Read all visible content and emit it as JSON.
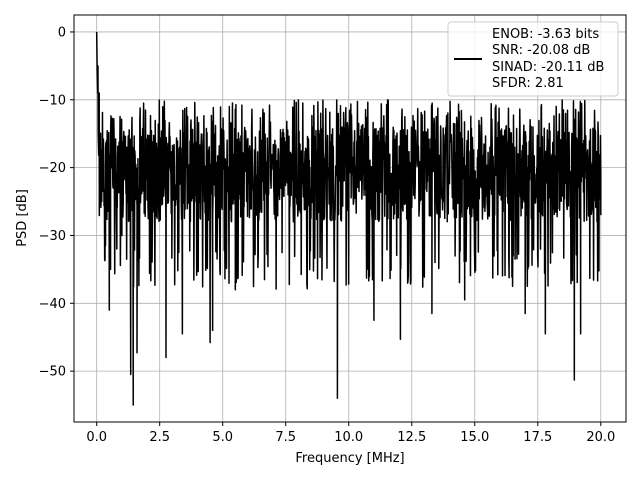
{
  "chart_data": {
    "type": "line",
    "title": "",
    "xlabel": "Frequency [MHz]",
    "ylabel": "PSD [dB]",
    "xlim": [
      -0.9,
      21.0
    ],
    "ylim": [
      -57.5,
      2.5
    ],
    "xticks": [
      0.0,
      2.5,
      5.0,
      7.5,
      10.0,
      12.5,
      15.0,
      17.5,
      20.0
    ],
    "xtick_labels": [
      "0.0",
      "2.5",
      "5.0",
      "7.5",
      "10.0",
      "12.5",
      "15.0",
      "17.5",
      "20.0"
    ],
    "yticks": [
      0,
      -10,
      -20,
      -30,
      -40,
      -50
    ],
    "ytick_labels": [
      "0",
      "−10",
      "−20",
      "−30",
      "−40",
      "−50"
    ],
    "grid": true,
    "legend_position": "top-right",
    "series": [
      {
        "name": "",
        "color": "#000000",
        "description_points": {
          "x": [
            0.0,
            0.05,
            0.1,
            0.2,
            0.35,
            0.5,
            0.55,
            0.8,
            1.0,
            1.35,
            1.45,
            1.6,
            2.75,
            3.4,
            4.5,
            4.6,
            5.5,
            9.55,
            11.0,
            12.05,
            13.3,
            14.6,
            16.5,
            17.0,
            17.8,
            18.95,
            19.2,
            20.0
          ],
          "y": [
            0.0,
            -5.0,
            -9.0,
            -25.0,
            -31.5,
            -41.0,
            -35.0,
            -32.0,
            -30.0,
            -50.5,
            -55.0,
            -47.3,
            -48.0,
            -44.5,
            -45.8,
            -44.0,
            -38.0,
            -54.0,
            -42.5,
            -45.3,
            -41.5,
            -39.5,
            -37.5,
            -41.5,
            -44.5,
            -51.3,
            -44.5,
            -27.0
          ]
        },
        "noise_floor_mean": -20.0,
        "noise_upper_envelope": -10.0,
        "noise_lower_envelope": -32.0
      }
    ],
    "legend": {
      "lines": [
        "ENOB: -3.63 bits",
        "SNR: -20.08 dB",
        "SINAD: -20.11 dB",
        "SFDR: 2.81"
      ]
    }
  }
}
